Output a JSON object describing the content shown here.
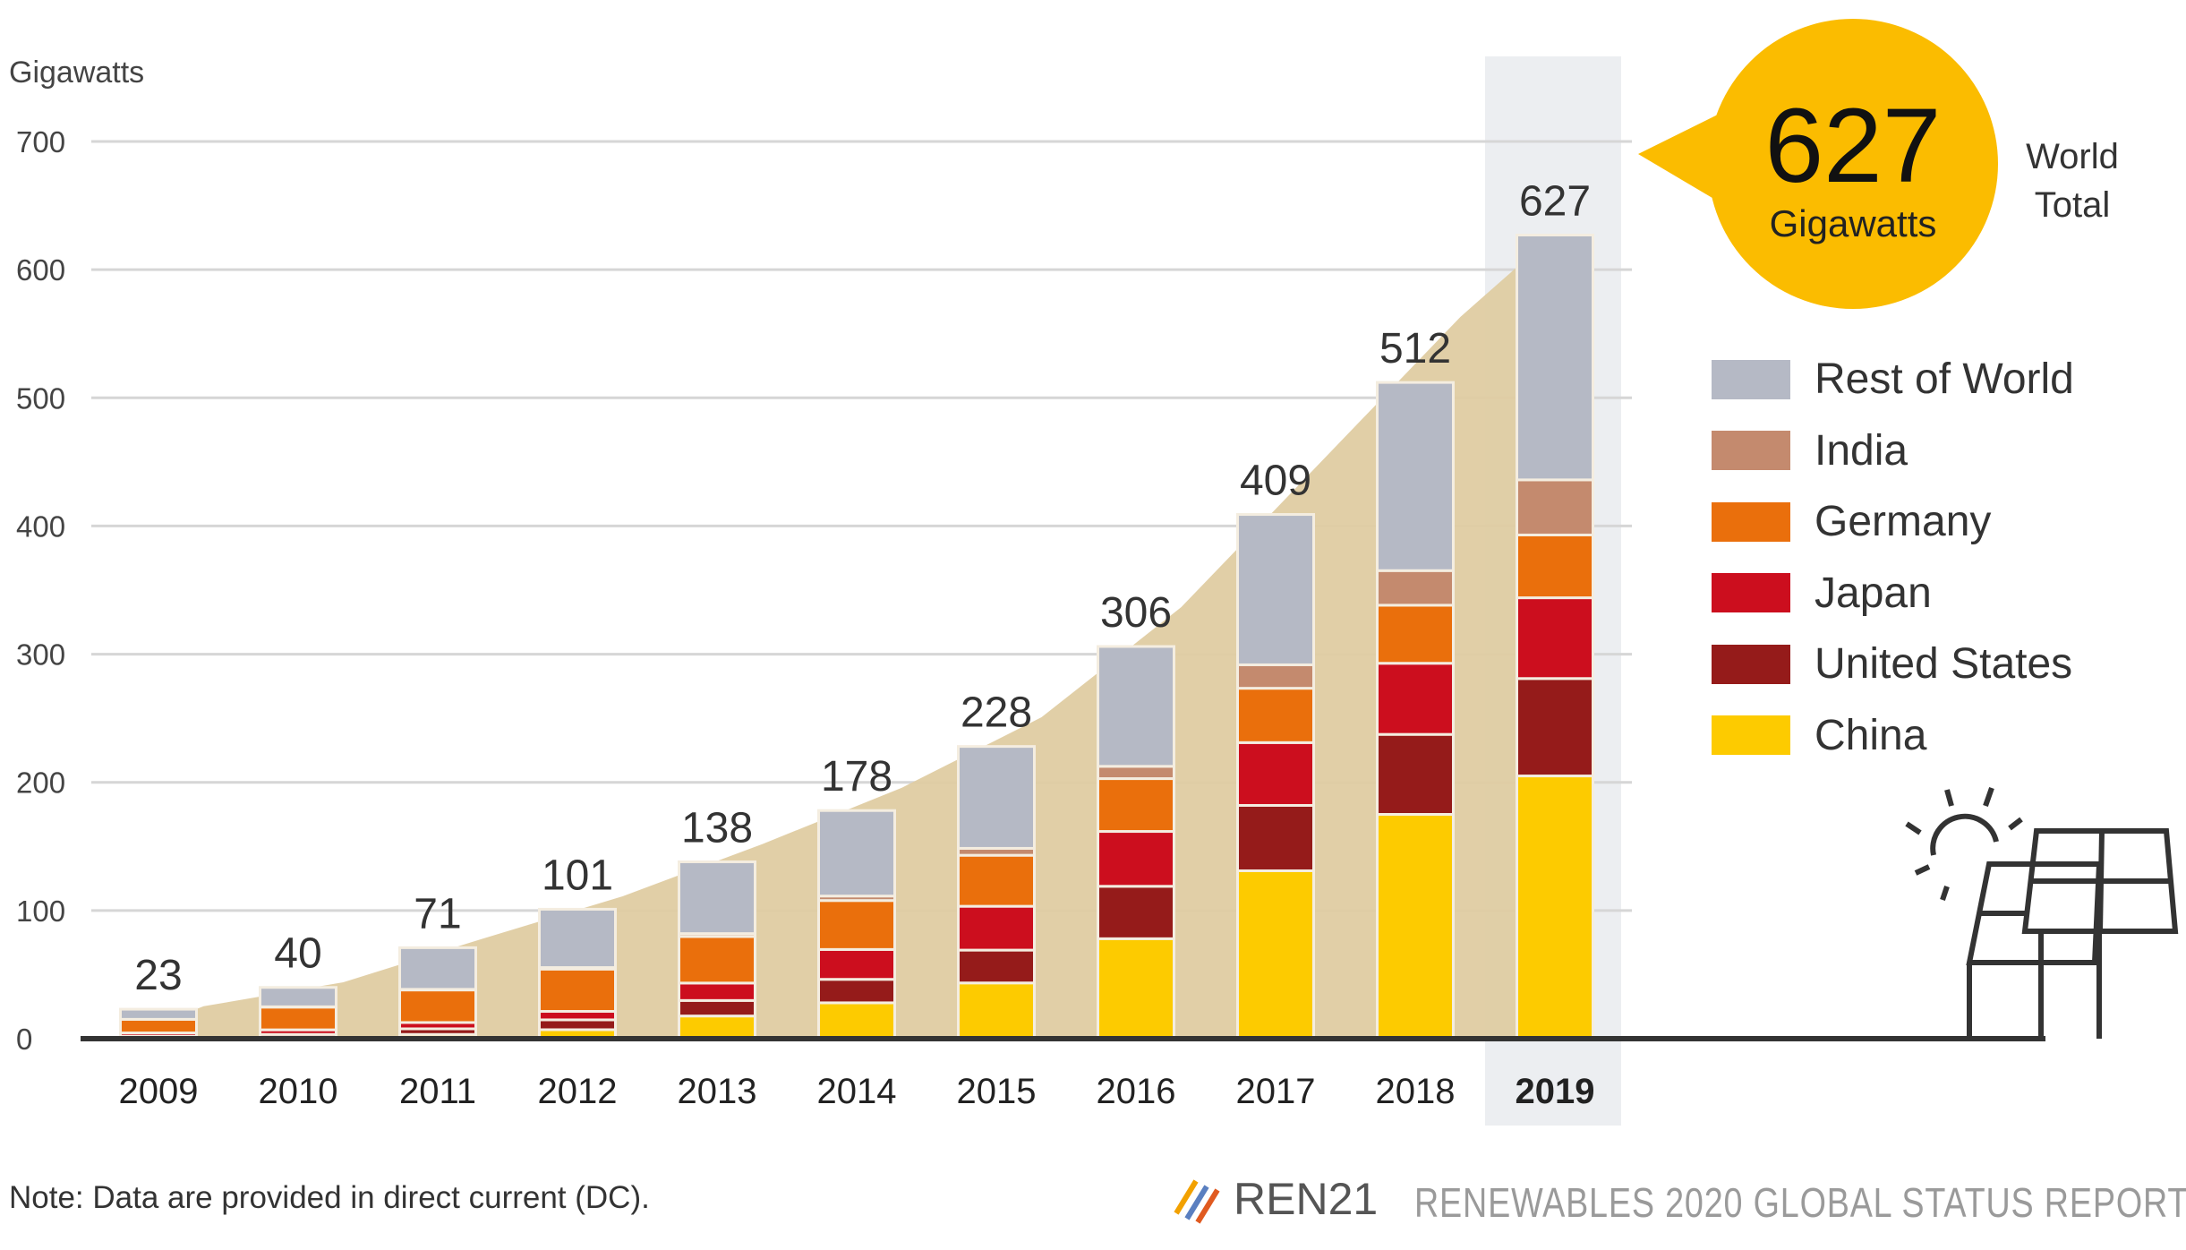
{
  "chart_data": {
    "type": "stacked-bar",
    "ylabel": "Gigawatts",
    "ylim": [
      0,
      700
    ],
    "yticks": [
      0,
      100,
      200,
      300,
      400,
      500,
      600,
      700
    ],
    "grid": true,
    "legend_position": "right",
    "categories": [
      "2009",
      "2010",
      "2011",
      "2012",
      "2013",
      "2014",
      "2015",
      "2016",
      "2017",
      "2018",
      "2019"
    ],
    "highlight_category": "2019",
    "totals": [
      23,
      40,
      71,
      101,
      138,
      178,
      228,
      306,
      409,
      512,
      627
    ],
    "series": [
      {
        "name": "China",
        "color": "#fdcb00",
        "values": [
          0.3,
          0.8,
          3.3,
          7,
          17.7,
          28,
          43.5,
          78,
          131,
          175,
          205
        ]
      },
      {
        "name": "United States",
        "color": "#951b1a",
        "values": [
          1.6,
          2.5,
          4.4,
          7.7,
          12.1,
          18.3,
          25.6,
          40.9,
          51,
          62.4,
          76
        ]
      },
      {
        "name": "Japan",
        "color": "#cc0e1e",
        "values": [
          2.6,
          3.6,
          4.9,
          6.6,
          13.6,
          23.3,
          34.2,
          42.8,
          49,
          55.5,
          63
        ]
      },
      {
        "name": "Germany",
        "color": "#ea6f0c",
        "values": [
          10.6,
          17.9,
          25.4,
          33,
          36.3,
          38.2,
          39.8,
          41.2,
          42.4,
          45.3,
          49
        ]
      },
      {
        "name": "India",
        "color": "#c48a6e",
        "values": [
          0,
          0.1,
          0.5,
          1.2,
          2.3,
          3.5,
          5.4,
          9.6,
          18.3,
          27,
          43
        ]
      },
      {
        "name": "Rest of World",
        "color": "#b5b9c5",
        "values": [
          7.9,
          15.1,
          32.5,
          45.5,
          56,
          66.7,
          79.5,
          93.5,
          117.3,
          146.8,
          191
        ]
      }
    ],
    "legend_order": [
      "Rest of World",
      "India",
      "Germany",
      "Japan",
      "United States",
      "China"
    ],
    "area_color": "#dfcca2"
  },
  "callout": {
    "value": "627",
    "unit": "Gigawatts",
    "label": "World Total",
    "color": "#fbbc00"
  },
  "note": "Note: Data are provided in direct current (DC).",
  "source": {
    "logo": "REN21",
    "report": "RENEWABLES 2020 GLOBAL STATUS REPORT"
  },
  "icons": [
    "sun-icon",
    "solar-panel-icon",
    "ren21-logo"
  ]
}
